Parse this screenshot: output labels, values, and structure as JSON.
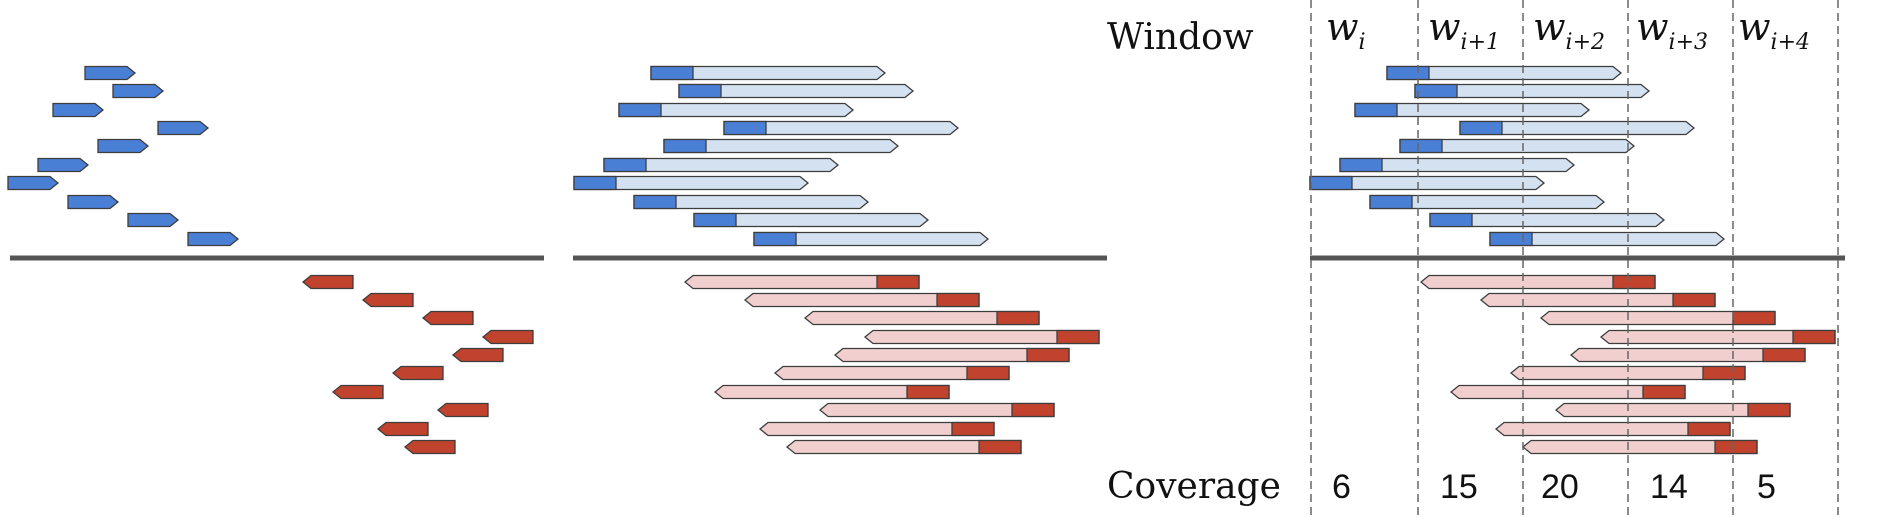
{
  "labels": {
    "window": "Window",
    "coverage": "Coverage"
  },
  "windows": [
    {
      "main": "w",
      "sub": "i"
    },
    {
      "main": "w",
      "sub": "i+1"
    },
    {
      "main": "w",
      "sub": "i+2"
    },
    {
      "main": "w",
      "sub": "i+3"
    },
    {
      "main": "w",
      "sub": "i+4"
    }
  ],
  "coverage": [
    "6",
    "15",
    "20",
    "14",
    "5"
  ],
  "colors": {
    "forward_read": "#4a7fd6",
    "forward_read_light": "#d4e1f0",
    "reverse_read": "#c1432e",
    "reverse_read_light": "#f2cfcf",
    "outline": "#3d3d3d",
    "axis": "#555555",
    "window_line": "#666666"
  }
}
